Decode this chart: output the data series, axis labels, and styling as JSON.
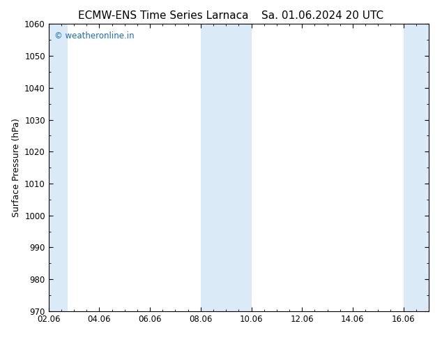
{
  "title_left": "ECMW-ENS Time Series Larnaca",
  "title_right": "Sa. 01.06.2024 20 UTC",
  "ylabel": "Surface Pressure (hPa)",
  "ylim": [
    970,
    1060
  ],
  "yticks": [
    970,
    980,
    990,
    1000,
    1010,
    1020,
    1030,
    1040,
    1050,
    1060
  ],
  "xlim": [
    0,
    15
  ],
  "xtick_labels": [
    "02.06",
    "04.06",
    "06.06",
    "08.06",
    "10.06",
    "12.06",
    "14.06",
    "16.06"
  ],
  "xtick_positions": [
    0,
    2,
    4,
    6,
    8,
    10,
    12,
    14
  ],
  "shaded_bands": [
    {
      "x_start": 0.0,
      "x_end": 0.75
    },
    {
      "x_start": 6.0,
      "x_end": 8.0
    },
    {
      "x_start": 14.0,
      "x_end": 15.0
    }
  ],
  "shade_color": "#daeaf7",
  "watermark": "© weatheronline.in",
  "watermark_color": "#1a6bc2",
  "background_color": "#ffffff",
  "axes_color": "#000000",
  "title_fontsize": 11,
  "label_fontsize": 9,
  "tick_fontsize": 8.5
}
